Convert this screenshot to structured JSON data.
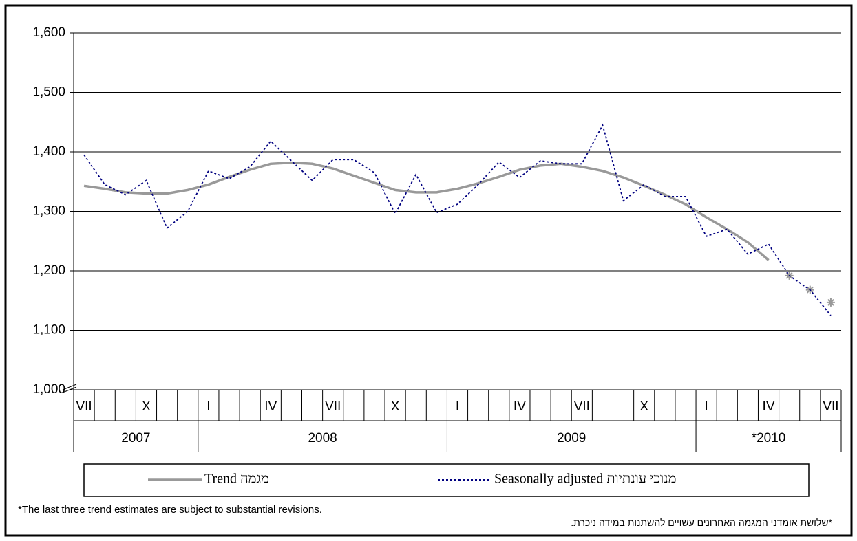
{
  "chart_data": {
    "type": "line",
    "categories": [
      "VII",
      null,
      null,
      "X",
      null,
      null,
      "I",
      null,
      null,
      "IV",
      null,
      null,
      "VII",
      null,
      null,
      "X",
      null,
      null,
      "I",
      null,
      null,
      "IV",
      null,
      null,
      "VII",
      null,
      null,
      "X",
      null,
      null,
      "I",
      null,
      null,
      "IV",
      null,
      null,
      "VII"
    ],
    "years": [
      "2007",
      "2008",
      "2009",
      "*2010"
    ],
    "series": [
      {
        "name": "Trend מגמה",
        "color": "#999999",
        "style": "solid",
        "values": [
          1343,
          1338,
          1332,
          1330,
          1330,
          1336,
          1345,
          1358,
          1370,
          1380,
          1382,
          1380,
          1372,
          1360,
          1348,
          1336,
          1332,
          1332,
          1338,
          1347,
          1358,
          1370,
          1377,
          1380,
          1375,
          1368,
          1357,
          1343,
          1328,
          1312,
          1290,
          1270,
          1248,
          1218,
          null,
          null,
          null
        ]
      },
      {
        "color": "#999999",
        "style": "asterisk",
        "values": [
          null,
          null,
          null,
          null,
          null,
          null,
          null,
          null,
          null,
          null,
          null,
          null,
          null,
          null,
          null,
          null,
          null,
          null,
          null,
          null,
          null,
          null,
          null,
          null,
          null,
          null,
          null,
          null,
          null,
          null,
          null,
          null,
          null,
          null,
          1192,
          1168,
          1147
        ]
      },
      {
        "name": "Seasonally adjusted מנוכי עונתיות",
        "color": "#000080",
        "style": "dotted",
        "values": [
          1395,
          1345,
          1328,
          1352,
          1272,
          1300,
          1368,
          1355,
          1375,
          1418,
          1385,
          1352,
          1387,
          1387,
          1365,
          1296,
          1362,
          1298,
          1312,
          1345,
          1383,
          1357,
          1385,
          1380,
          1380,
          1445,
          1318,
          1345,
          1325,
          1325,
          1258,
          1270,
          1228,
          1245,
          1192,
          1168,
          1125
        ]
      }
    ],
    "ylim": [
      1000,
      1600
    ],
    "yticks": [
      {
        "value": 1000,
        "label": "1,000"
      },
      {
        "value": 1100,
        "label": "1,100"
      },
      {
        "value": 1200,
        "label": "1,200"
      },
      {
        "value": 1300,
        "label": "1,300"
      },
      {
        "value": 1400,
        "label": "1,400"
      },
      {
        "value": 1500,
        "label": "1,500"
      },
      {
        "value": 1600,
        "label": "1,600"
      }
    ],
    "grid": true
  },
  "footnotes": {
    "english": "*The last three trend estimates are subject to substantial revisions.",
    "hebrew": "*שלושת אומדני המגמה האחרונים עשויים להשתנות במידה ניכרת."
  }
}
